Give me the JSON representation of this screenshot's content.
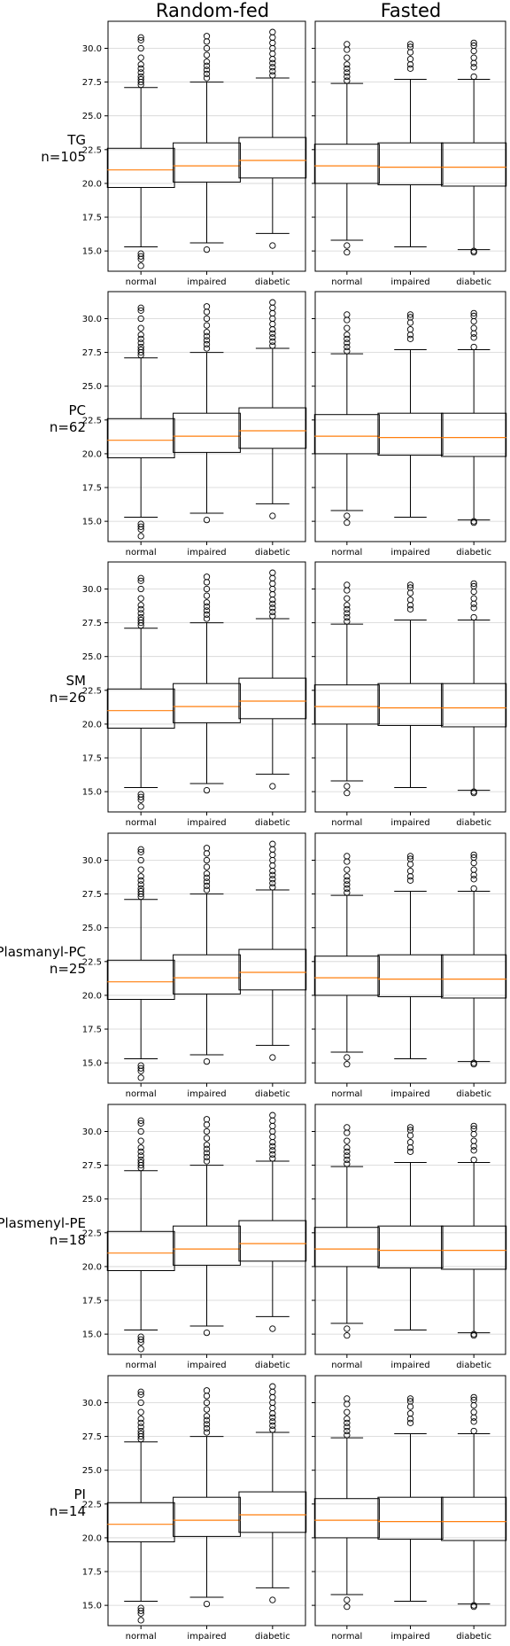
{
  "column_titles": [
    "Random-fed",
    "Fasted"
  ],
  "colors": {
    "median": "#ff7f0e",
    "box": "#000000",
    "grid": "#d3d3d3"
  },
  "chart_data": {
    "type": "box",
    "categories": [
      "normal",
      "impaired",
      "diabetic"
    ],
    "conditions": [
      "Random-fed",
      "Fasted"
    ],
    "ylim": [
      13.5,
      32
    ],
    "yticks": [
      15.0,
      17.5,
      20.0,
      22.5,
      25.0,
      27.5,
      30.0
    ],
    "ytick_labels": [
      "15.0",
      "17.5",
      "20.0",
      "22.5",
      "25.0",
      "27.5",
      "30.0"
    ],
    "grid": "y-axis",
    "rows": [
      {
        "lipid": "TG",
        "n": "n=105"
      },
      {
        "lipid": "PC",
        "n": "n=62"
      },
      {
        "lipid": "SM",
        "n": "n=26"
      },
      {
        "lipid": "Plasmanyl-PC",
        "n": "n=25"
      },
      {
        "lipid": "Plasmenyl-PE",
        "n": "n=18"
      },
      {
        "lipid": "PI",
        "n": "n=14"
      }
    ],
    "stats": {
      "Random-fed": {
        "normal": {
          "q1": 19.7,
          "median": 21.0,
          "q3": 22.6,
          "whisker_low": 15.3,
          "whisker_high": 27.1,
          "outliers": [
            13.9,
            14.4,
            14.6,
            14.8,
            27.3,
            27.5,
            27.7,
            27.9,
            28.2,
            28.5,
            28.8,
            29.3,
            30.0,
            30.6,
            30.8
          ]
        },
        "impaired": {
          "q1": 20.1,
          "median": 21.3,
          "q3": 23.0,
          "whisker_low": 15.6,
          "whisker_high": 27.5,
          "outliers": [
            15.1,
            27.8,
            28.1,
            28.4,
            28.7,
            29.0,
            29.5,
            30.0,
            30.5,
            30.9
          ]
        },
        "diabetic": {
          "q1": 20.4,
          "median": 21.7,
          "q3": 23.4,
          "whisker_low": 16.3,
          "whisker_high": 27.8,
          "outliers": [
            15.4,
            28.0,
            28.3,
            28.6,
            28.9,
            29.2,
            29.6,
            30.0,
            30.4,
            30.8,
            31.2
          ]
        }
      },
      "Fasted": {
        "normal": {
          "q1": 20.0,
          "median": 21.3,
          "q3": 22.9,
          "whisker_low": 15.8,
          "whisker_high": 27.4,
          "outliers": [
            14.9,
            15.4,
            27.6,
            27.9,
            28.2,
            28.5,
            28.8,
            29.3,
            29.9,
            30.3
          ]
        },
        "impaired": {
          "q1": 19.9,
          "median": 21.2,
          "q3": 23.0,
          "whisker_low": 15.3,
          "whisker_high": 27.7,
          "outliers": [
            28.5,
            28.8,
            29.2,
            29.7,
            30.1,
            30.3
          ]
        },
        "diabetic": {
          "q1": 19.8,
          "median": 21.2,
          "q3": 23.0,
          "whisker_low": 15.1,
          "whisker_high": 27.7,
          "outliers": [
            14.9,
            15.0,
            27.9,
            28.6,
            28.9,
            29.3,
            29.8,
            30.2,
            30.4
          ]
        }
      }
    }
  }
}
